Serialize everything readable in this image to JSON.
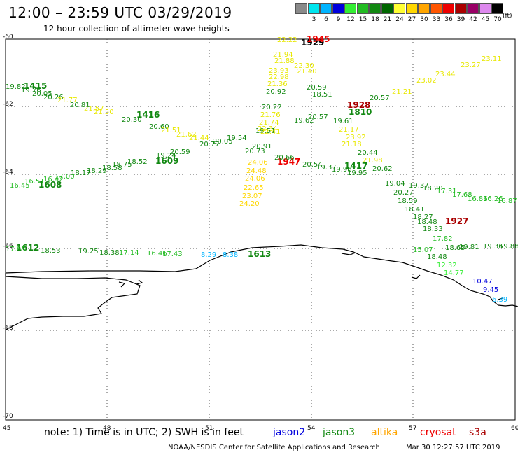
{
  "header": {
    "title": "12:00 – 23:59 UTC 03/29/2019",
    "subtitle": "12 hour collection of altimeter wave heights"
  },
  "colorbar": {
    "unit": "(ft)",
    "swatches": [
      {
        "label": "",
        "color": "#8a8a8a"
      },
      {
        "label": "3",
        "color": "#00e5ee"
      },
      {
        "label": "6",
        "color": "#00b4ff"
      },
      {
        "label": "9",
        "color": "#0000dd"
      },
      {
        "label": "12",
        "color": "#33ee33"
      },
      {
        "label": "15",
        "color": "#22bb22"
      },
      {
        "label": "18",
        "color": "#118811"
      },
      {
        "label": "21",
        "color": "#006600"
      },
      {
        "label": "24",
        "color": "#ffff33"
      },
      {
        "label": "27",
        "color": "#ffd700"
      },
      {
        "label": "30",
        "color": "#ffa500"
      },
      {
        "label": "33",
        "color": "#ff5500"
      },
      {
        "label": "36",
        "color": "#ee0000"
      },
      {
        "label": "39",
        "color": "#aa0000"
      },
      {
        "label": "42",
        "color": "#990066"
      },
      {
        "label": "45",
        "color": "#dd88ee"
      },
      {
        "label": "70",
        "color": "#000000"
      }
    ]
  },
  "axes": {
    "lat_labels": [
      "-60",
      "-62",
      "-64",
      "-66",
      "-68",
      "-70"
    ],
    "lon_labels": [
      "45",
      "48",
      "51",
      "54",
      "57",
      "60"
    ]
  },
  "tracks": [
    {
      "time": "1415",
      "color": "#118811"
    },
    {
      "time": "1416",
      "color": "#118811"
    },
    {
      "time": "1609",
      "color": "#118811"
    },
    {
      "time": "1608",
      "color": "#118811"
    },
    {
      "time": "1612",
      "color": "#118811"
    },
    {
      "time": "1613",
      "color": "#118811"
    },
    {
      "time": "1417",
      "color": "#118811"
    },
    {
      "time": "1810",
      "color": "#118811"
    },
    {
      "time": "1929",
      "color": "#000000"
    },
    {
      "time": "1945",
      "color": "#ee0000"
    },
    {
      "time": "1928",
      "color": "#aa0000"
    },
    {
      "time": "1947",
      "color": "#ee0000"
    },
    {
      "time": "1927",
      "color": "#aa0000"
    }
  ],
  "readings": [
    {
      "v": "19.82",
      "c": "#118811"
    },
    {
      "v": "19.76",
      "c": "#118811"
    },
    {
      "v": "20.05",
      "c": "#118811"
    },
    {
      "v": "20.26",
      "c": "#118811"
    },
    {
      "v": "21.77",
      "c": "#e8e800"
    },
    {
      "v": "20.81",
      "c": "#118811"
    },
    {
      "v": "21.57",
      "c": "#e8e800"
    },
    {
      "v": "21.50",
      "c": "#e8e800"
    },
    {
      "v": "20.30",
      "c": "#118811"
    },
    {
      "v": "20.60",
      "c": "#118811"
    },
    {
      "v": "21.51",
      "c": "#e8e800"
    },
    {
      "v": "21.62",
      "c": "#e8e800"
    },
    {
      "v": "21.44",
      "c": "#e8e800"
    },
    {
      "v": "20.77",
      "c": "#118811"
    },
    {
      "v": "20.05",
      "c": "#118811"
    },
    {
      "v": "19.54",
      "c": "#118811"
    },
    {
      "v": "20.59",
      "c": "#118811"
    },
    {
      "v": "19.24",
      "c": "#118811"
    },
    {
      "v": "18.52",
      "c": "#118811"
    },
    {
      "v": "18.75",
      "c": "#118811"
    },
    {
      "v": "18.58",
      "c": "#118811"
    },
    {
      "v": "18.29",
      "c": "#118811"
    },
    {
      "v": "18.17",
      "c": "#118811"
    },
    {
      "v": "17.00",
      "c": "#22bb22"
    },
    {
      "v": "16.42",
      "c": "#22bb22"
    },
    {
      "v": "16.51",
      "c": "#22bb22"
    },
    {
      "v": "16.45",
      "c": "#22bb22"
    },
    {
      "v": "17.93",
      "c": "#22bb22"
    },
    {
      "v": "18.53",
      "c": "#118811"
    },
    {
      "v": "19.25",
      "c": "#118811"
    },
    {
      "v": "18.38",
      "c": "#118811"
    },
    {
      "v": "17.14",
      "c": "#22bb22"
    },
    {
      "v": "16.46",
      "c": "#22bb22"
    },
    {
      "v": "17.43",
      "c": "#22bb22"
    },
    {
      "v": "8.29",
      "c": "#00b4ff"
    },
    {
      "v": "8.38",
      "c": "#00b4ff"
    },
    {
      "v": "22.22",
      "c": "#e8e800"
    },
    {
      "v": "21.94",
      "c": "#e8e800"
    },
    {
      "v": "21.88",
      "c": "#e8e800"
    },
    {
      "v": "22.30",
      "c": "#e8e800"
    },
    {
      "v": "23.93",
      "c": "#e8e800"
    },
    {
      "v": "22.98",
      "c": "#e8e800"
    },
    {
      "v": "21.36",
      "c": "#e8e800"
    },
    {
      "v": "20.92",
      "c": "#118811"
    },
    {
      "v": "20.22",
      "c": "#118811"
    },
    {
      "v": "21.76",
      "c": "#e8e800"
    },
    {
      "v": "21.74",
      "c": "#e8e800"
    },
    {
      "v": "22.34",
      "c": "#e8e800"
    },
    {
      "v": "19.51",
      "c": "#118811"
    },
    {
      "v": "20.91",
      "c": "#118811"
    },
    {
      "v": "20.73",
      "c": "#118811"
    },
    {
      "v": "22.41",
      "c": "#e8e800"
    },
    {
      "v": "24.06",
      "c": "#ffd700"
    },
    {
      "v": "24.48",
      "c": "#ffd700"
    },
    {
      "v": "24.06",
      "c": "#ffd700"
    },
    {
      "v": "22.65",
      "c": "#ffd700"
    },
    {
      "v": "23.07",
      "c": "#ffd700"
    },
    {
      "v": "24.20",
      "c": "#ffd700"
    },
    {
      "v": "21.40",
      "c": "#e8e800"
    },
    {
      "v": "20.59",
      "c": "#118811"
    },
    {
      "v": "18.51",
      "c": "#118811"
    },
    {
      "v": "19.62",
      "c": "#118811"
    },
    {
      "v": "20.57",
      "c": "#118811"
    },
    {
      "v": "20.66",
      "c": "#118811"
    },
    {
      "v": "20.54",
      "c": "#118811"
    },
    {
      "v": "19.37",
      "c": "#118811"
    },
    {
      "v": "19.98",
      "c": "#118811"
    },
    {
      "v": "19.95",
      "c": "#118811"
    },
    {
      "v": "19.61",
      "c": "#118811"
    },
    {
      "v": "21.17",
      "c": "#e8e800"
    },
    {
      "v": "23.92",
      "c": "#e8e800"
    },
    {
      "v": "21.18",
      "c": "#e8e800"
    },
    {
      "v": "20.44",
      "c": "#118811"
    },
    {
      "v": "21.98",
      "c": "#e8e800"
    },
    {
      "v": "20.62",
      "c": "#118811"
    },
    {
      "v": "20.57",
      "c": "#118811"
    },
    {
      "v": "21.21",
      "c": "#e8e800"
    },
    {
      "v": "23.02",
      "c": "#e8e800"
    },
    {
      "v": "23.44",
      "c": "#e8e800"
    },
    {
      "v": "23.27",
      "c": "#e8e800"
    },
    {
      "v": "23.11",
      "c": "#e8e800"
    },
    {
      "v": "19.04",
      "c": "#118811"
    },
    {
      "v": "19.37",
      "c": "#118811"
    },
    {
      "v": "18.20",
      "c": "#118811"
    },
    {
      "v": "17.31",
      "c": "#22bb22"
    },
    {
      "v": "17.68",
      "c": "#22bb22"
    },
    {
      "v": "16.86",
      "c": "#22bb22"
    },
    {
      "v": "16.26",
      "c": "#22bb22"
    },
    {
      "v": "16.87",
      "c": "#22bb22"
    },
    {
      "v": "20.27",
      "c": "#118811"
    },
    {
      "v": "18.59",
      "c": "#118811"
    },
    {
      "v": "18.41",
      "c": "#118811"
    },
    {
      "v": "18.27",
      "c": "#118811"
    },
    {
      "v": "18.48",
      "c": "#118811"
    },
    {
      "v": "18.33",
      "c": "#118811"
    },
    {
      "v": "17.82",
      "c": "#22bb22"
    },
    {
      "v": "18.65",
      "c": "#118811"
    },
    {
      "v": "19.81",
      "c": "#118811"
    },
    {
      "v": "19.36",
      "c": "#118811"
    },
    {
      "v": "19.88",
      "c": "#118811"
    },
    {
      "v": "18.48",
      "c": "#118811"
    },
    {
      "v": "15.07",
      "c": "#22bb22"
    },
    {
      "v": "12.32",
      "c": "#33ee33"
    },
    {
      "v": "14.77",
      "c": "#33ee33"
    },
    {
      "v": "10.47",
      "c": "#0000dd"
    },
    {
      "v": "9.45",
      "c": "#0000dd"
    },
    {
      "v": "6.39",
      "c": "#00b4ff"
    }
  ],
  "legend": {
    "note": "note: 1) Time is in UTC; 2) SWH is in feet",
    "sats": [
      {
        "name": "jason2",
        "color": "#0000dd"
      },
      {
        "name": "jason3",
        "color": "#118811"
      },
      {
        "name": "altika",
        "color": "#ffa500"
      },
      {
        "name": "cryosat",
        "color": "#ee0000"
      },
      {
        "name": "s3a",
        "color": "#aa0000"
      }
    ]
  },
  "footer": {
    "credit": "NOAA/NESDIS Center for Satellite Applications and Research",
    "timestamp": "Mar 30 12:27:57 UTC 2019"
  }
}
